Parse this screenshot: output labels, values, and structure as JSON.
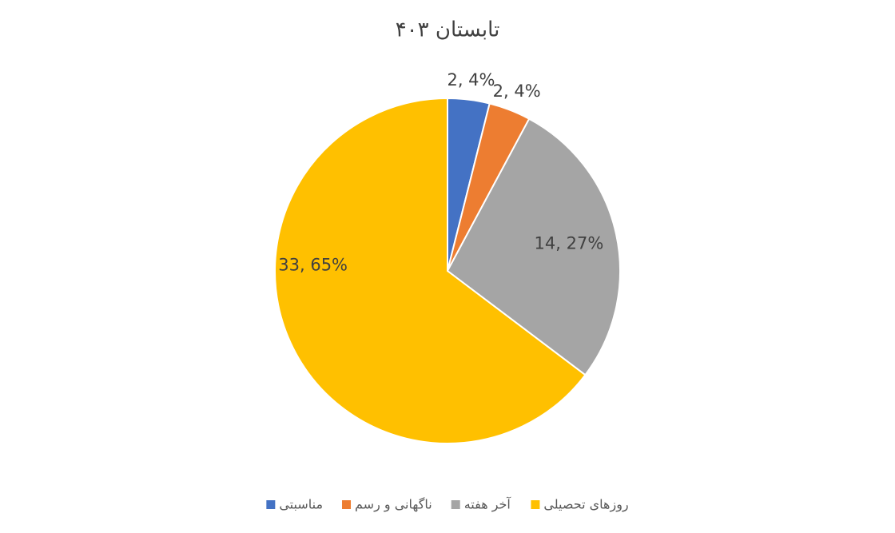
{
  "chart_data": {
    "type": "pie",
    "title": "تابستان ۴۰۳",
    "categories": [
      "مناسبتی",
      "ناگهانی و رسم",
      "آخر هفته",
      "روزهای تحصیلی"
    ],
    "values": [
      2,
      2,
      14,
      33
    ],
    "value_labels": [
      "2, 4%",
      "2, 4%",
      "14, 27%",
      "33, 65%"
    ],
    "colors": [
      "#4472c4",
      "#ed7d31",
      "#a5a5a5",
      "#ffc000"
    ],
    "legend": "bottom"
  }
}
